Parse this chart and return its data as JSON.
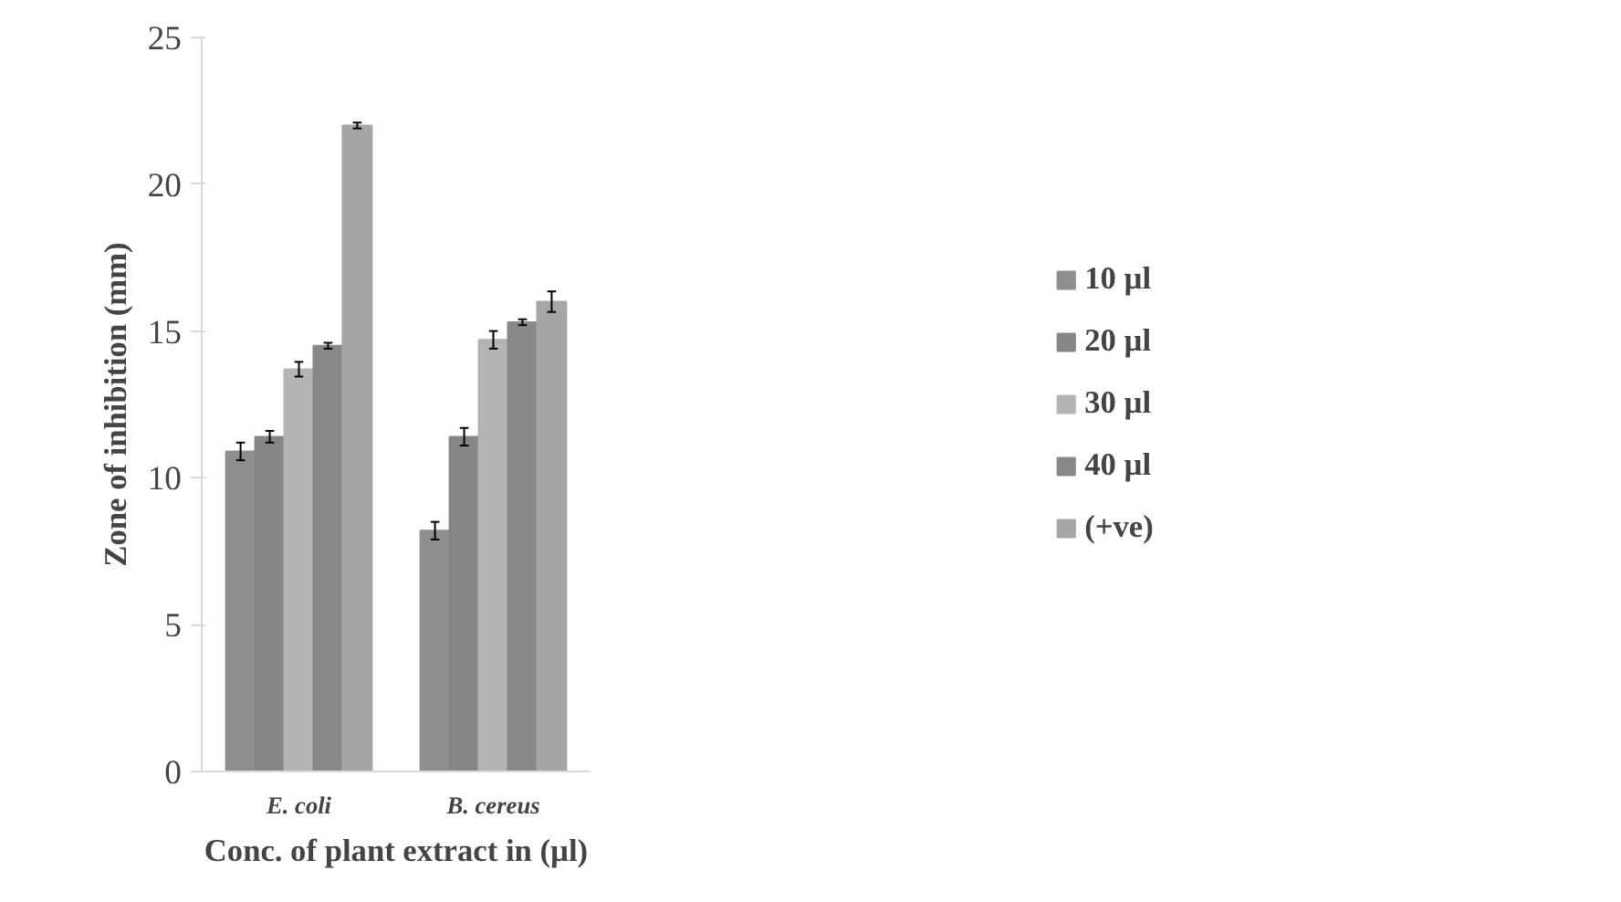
{
  "chart_data": {
    "type": "bar",
    "xlabel": "Conc. of plant extract in (µl)",
    "ylabel": "Zone of inhibition (mm)",
    "categories": [
      "E. coli",
      "B. cereus"
    ],
    "series": [
      {
        "name": "10 µl",
        "color": "#8e8e8e",
        "values": [
          10.9,
          8.2
        ],
        "errors": [
          0.3,
          0.3
        ]
      },
      {
        "name": "20 µl",
        "color": "#868686",
        "values": [
          11.4,
          11.4
        ],
        "errors": [
          0.2,
          0.3
        ]
      },
      {
        "name": "30 µl",
        "color": "#b4b4b4",
        "values": [
          13.7,
          14.7
        ],
        "errors": [
          0.25,
          0.3
        ]
      },
      {
        "name": "40 µl",
        "color": "#888888",
        "values": [
          14.5,
          15.3
        ],
        "errors": [
          0.1,
          0.1
        ]
      },
      {
        "name": "(+ve)",
        "color": "#a6a6a6",
        "values": [
          22.0,
          16.0
        ],
        "errors": [
          0.1,
          0.35
        ]
      }
    ],
    "ylim": [
      0,
      25
    ],
    "yticks": [
      0,
      5,
      10,
      15,
      20,
      25
    ],
    "grid": false,
    "legend": "right"
  }
}
